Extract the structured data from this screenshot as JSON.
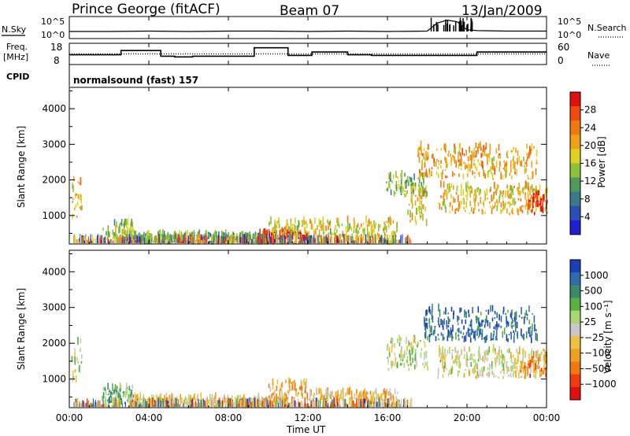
{
  "header": {
    "site": "Prince George (fitACF)",
    "beam": "Beam 07",
    "date": "13/Jan/2009"
  },
  "top_panels": {
    "nsky_label": "N.Sky",
    "nsearch_label": "N.Search",
    "nsky_ticks": [
      "10^5",
      "10^0"
    ],
    "nsearch_ticks": [
      "10^5",
      "10^0"
    ],
    "freq_label_line1": "Freq.",
    "freq_label_line2": "[MHz]",
    "freq_ticks": [
      "18",
      "8"
    ],
    "nave_label": "Nave",
    "nave_ticks": [
      "60",
      "0"
    ],
    "cpid_label": "CPID",
    "cpid_value": "normalsound (fast) 157"
  },
  "colors": {
    "power_scale": [
      "#1e1ed2",
      "#2a4fb6",
      "#3a7a8a",
      "#4f9a5a",
      "#8cc23a",
      "#e0d020",
      "#f0a018",
      "#f07a10",
      "#f04a10",
      "#e01010"
    ],
    "velocity_scale": [
      "#1c3fb8",
      "#2f6cae",
      "#3a8a6a",
      "#5ab040",
      "#a8d870",
      "#c8c8c8",
      "#f0c040",
      "#f0a020",
      "#f07a10",
      "#f03a10",
      "#e01010"
    ]
  },
  "chart_data": [
    {
      "type": "line",
      "title": "N.Sky / N.Search",
      "xlabel": "",
      "ylabel": "",
      "x": [
        "00:00",
        "04:00",
        "08:00",
        "12:00",
        "16:00",
        "20:00",
        "00:00"
      ],
      "ylim_log10": [
        0,
        5
      ],
      "series": [
        {
          "name": "N.Sky",
          "x_hours": [
            0,
            2,
            4,
            6,
            8,
            10,
            12,
            14,
            16,
            18,
            18.5,
            19,
            19.5,
            20,
            20.5,
            22,
            24
          ],
          "log10_values": [
            1.6,
            1.6,
            1.7,
            1.6,
            1.7,
            1.7,
            1.6,
            1.7,
            1.6,
            1.7,
            3.5,
            4.2,
            3.8,
            2.0,
            1.8,
            1.7,
            1.7
          ]
        }
      ]
    },
    {
      "type": "line",
      "title": "Freq. / Nave",
      "xlabel": "",
      "ylabel": "Freq. [MHz]",
      "ylim": [
        8,
        18
      ],
      "ylim_right": [
        0,
        60
      ],
      "series": [
        {
          "name": "Freq.",
          "x_hours": [
            0,
            2.3,
            2.6,
            4.3,
            4.6,
            5.3,
            6.2,
            9.3,
            11.0,
            12.2,
            14.0,
            15.2,
            16.6,
            19.0,
            20.5,
            24
          ],
          "values": [
            12.6,
            12.6,
            14.6,
            14.6,
            11.9,
            11.6,
            11.9,
            15.9,
            12.3,
            13.9,
            12.6,
            12.3,
            12.3,
            12.3,
            13.9,
            13.9
          ]
        },
        {
          "name": "Nave",
          "x_hours": [
            0,
            24
          ],
          "values": [
            30,
            30
          ]
        }
      ]
    },
    {
      "type": "heatmap",
      "title": "",
      "xlabel": "",
      "ylabel": "Slant Range [km]",
      "x": [
        "00:00",
        "04:00",
        "08:00",
        "12:00",
        "16:00",
        "20:00",
        "00:00"
      ],
      "yticks": [
        1000,
        2000,
        3000,
        4000
      ],
      "ylim": [
        200,
        4600
      ],
      "xlim_hours": [
        0,
        24
      ],
      "colorbar": {
        "label": "Power [dB]",
        "ticks": [
          "4",
          "8",
          "12",
          "16",
          "20",
          "24",
          "28"
        ],
        "range": [
          0,
          30
        ]
      },
      "regions": [
        {
          "t0": 0.1,
          "t1": 0.6,
          "r0": 900,
          "r1": 2000,
          "level": 0.6
        },
        {
          "t0": 1.6,
          "t1": 3.2,
          "r0": 280,
          "r1": 760,
          "level": 0.45
        },
        {
          "t0": 3.0,
          "t1": 10.0,
          "r0": 180,
          "r1": 420,
          "level": 0.35
        },
        {
          "t0": 9.5,
          "t1": 12.0,
          "r0": 180,
          "r1": 500,
          "level": 0.95
        },
        {
          "t0": 10.0,
          "t1": 16.5,
          "r0": 180,
          "r1": 800,
          "level": 0.55
        },
        {
          "t0": 15.9,
          "t1": 18.0,
          "r0": 1500,
          "r1": 2100,
          "level": 0.4
        },
        {
          "t0": 17.0,
          "t1": 18.0,
          "r0": 700,
          "r1": 1700,
          "level": 0.6
        },
        {
          "t0": 17.5,
          "t1": 23.5,
          "r0": 2000,
          "r1": 2900,
          "level": 0.65
        },
        {
          "t0": 18.5,
          "t1": 24.0,
          "r0": 1000,
          "r1": 1800,
          "level": 0.6
        },
        {
          "t0": 23.0,
          "t1": 24.0,
          "r0": 1000,
          "r1": 1600,
          "level": 0.95
        }
      ]
    },
    {
      "type": "heatmap",
      "title": "",
      "xlabel": "Time UT",
      "ylabel": "Slant Range [km]",
      "x": [
        "00:00",
        "04:00",
        "08:00",
        "12:00",
        "16:00",
        "20:00",
        "00:00"
      ],
      "yticks": [
        1000,
        2000,
        3000,
        4000
      ],
      "ylim": [
        200,
        4600
      ],
      "xlim_hours": [
        0,
        24
      ],
      "colorbar": {
        "label": "Velocity [m s⁻¹]",
        "ticks": [
          "1000",
          "500",
          "100",
          "25",
          "−25",
          "−100",
          "−500",
          "−1000"
        ],
        "range": [
          1000,
          -1000
        ]
      },
      "regions": [
        {
          "t0": 0.1,
          "t1": 0.6,
          "r0": 900,
          "r1": 2000,
          "level": 0.45
        },
        {
          "t0": 1.6,
          "t1": 3.2,
          "r0": 280,
          "r1": 760,
          "level": 0.35
        },
        {
          "t0": 3.0,
          "t1": 10.0,
          "r0": 180,
          "r1": 420,
          "level": 0.55
        },
        {
          "t0": 10.0,
          "t1": 12.0,
          "r0": 180,
          "r1": 900,
          "level": 0.65
        },
        {
          "t0": 12.0,
          "t1": 16.5,
          "r0": 180,
          "r1": 600,
          "level": 0.6
        },
        {
          "t0": 15.9,
          "t1": 18.0,
          "r0": 1200,
          "r1": 2100,
          "level": 0.45
        },
        {
          "t0": 17.8,
          "t1": 23.5,
          "r0": 2000,
          "r1": 2900,
          "level": 0.15
        },
        {
          "t0": 18.5,
          "t1": 24.0,
          "r0": 1000,
          "r1": 1800,
          "level": 0.5
        },
        {
          "t0": 22.5,
          "t1": 24.0,
          "r0": 1000,
          "r1": 1600,
          "level": 0.75
        }
      ]
    }
  ]
}
